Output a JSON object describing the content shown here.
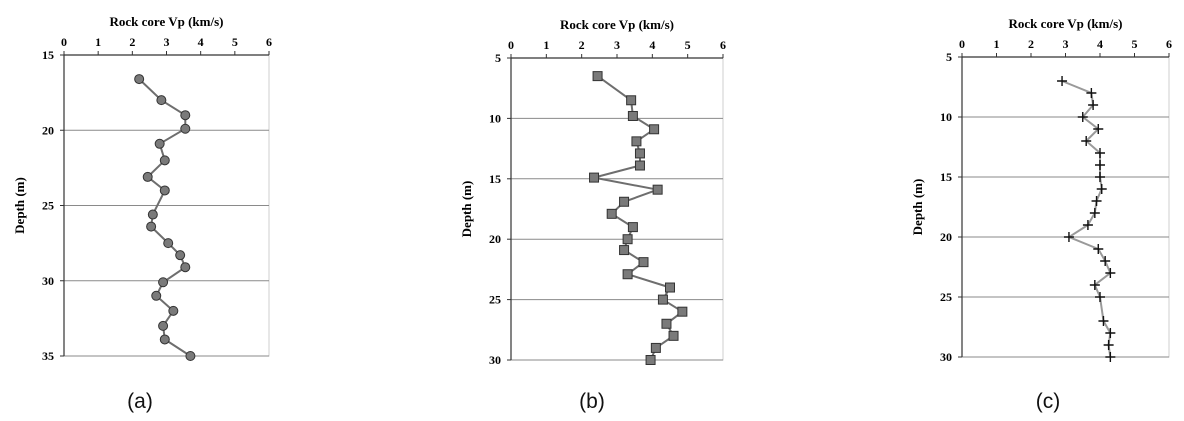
{
  "chart_data": [
    {
      "type": "scatter",
      "panel_label": "(a)",
      "xlabel": "Rock core Vp (km/s)",
      "ylabel": "Depth (m)",
      "xlim": [
        0,
        6
      ],
      "ylim": [
        15,
        35
      ],
      "y_inverted": true,
      "x_axis_position": "top",
      "xticks": [
        0,
        1,
        2,
        3,
        4,
        5,
        6
      ],
      "yticks": [
        15,
        20,
        25,
        30,
        35
      ],
      "grid": "horizontal",
      "marker": "circle",
      "series": [
        {
          "x": [
            2.2,
            2.85,
            3.55,
            3.55,
            2.8,
            2.95,
            2.45,
            2.95,
            2.6,
            2.55,
            3.05,
            3.4,
            3.55,
            2.9,
            2.7,
            3.2,
            2.9,
            2.95,
            3.7
          ],
          "y": [
            16.6,
            18.0,
            19.0,
            19.9,
            20.9,
            22.0,
            23.1,
            24.0,
            25.6,
            26.4,
            27.5,
            28.3,
            29.1,
            30.1,
            31.0,
            32.0,
            33.0,
            33.9,
            35.0
          ]
        }
      ]
    },
    {
      "type": "scatter",
      "panel_label": "(b)",
      "xlabel": "Rock core Vp (km/s)",
      "ylabel": "Depth (m)",
      "xlim": [
        0,
        6
      ],
      "ylim": [
        5,
        30
      ],
      "y_inverted": true,
      "x_axis_position": "top",
      "xticks": [
        0,
        1,
        2,
        3,
        4,
        5,
        6
      ],
      "yticks": [
        5,
        10,
        15,
        20,
        25,
        30
      ],
      "grid": "horizontal",
      "marker": "square",
      "series": [
        {
          "x": [
            2.45,
            3.4,
            3.45,
            4.05,
            3.55,
            3.65,
            3.65,
            2.35,
            4.15,
            3.2,
            2.85,
            3.45,
            3.3,
            3.2,
            3.75,
            3.3,
            4.5,
            4.3,
            4.85,
            4.4,
            4.6,
            4.1,
            3.95
          ],
          "y": [
            6.5,
            8.5,
            9.8,
            10.9,
            11.9,
            12.9,
            13.9,
            14.9,
            15.9,
            16.9,
            17.9,
            19.0,
            20.0,
            20.9,
            21.9,
            22.9,
            24.0,
            25.0,
            26.0,
            27.0,
            28.0,
            29.0,
            30.0
          ]
        }
      ]
    },
    {
      "type": "scatter",
      "panel_label": "(c)",
      "xlabel": "Rock core Vp (km/s)",
      "ylabel": "Depth (m)",
      "xlim": [
        0,
        6
      ],
      "ylim": [
        5,
        30
      ],
      "y_inverted": true,
      "x_axis_position": "top",
      "xticks": [
        0,
        1,
        2,
        3,
        4,
        5,
        6
      ],
      "yticks": [
        5,
        10,
        15,
        20,
        25,
        30
      ],
      "grid": "horizontal",
      "marker": "plus",
      "series": [
        {
          "x": [
            2.9,
            3.75,
            3.8,
            3.5,
            3.95,
            3.6,
            4.0,
            4.0,
            4.0,
            4.05,
            3.9,
            3.85,
            3.65,
            3.1,
            3.95,
            4.15,
            4.3,
            3.85,
            4.0,
            4.1,
            4.3,
            4.25,
            4.3
          ],
          "y": [
            7.0,
            8.0,
            9.0,
            10.0,
            11.0,
            12.0,
            13.0,
            14.0,
            15.0,
            16.0,
            17.0,
            18.0,
            19.0,
            20.0,
            21.0,
            22.0,
            23.0,
            24.0,
            25.0,
            27.0,
            28.0,
            29.0,
            30.0
          ]
        }
      ]
    }
  ]
}
